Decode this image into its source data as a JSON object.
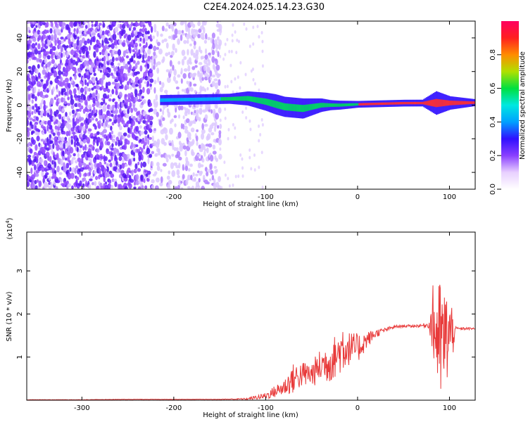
{
  "title": "C2E4.2024.025.14.23.G30",
  "colors": {
    "snr_line": "#e83a3a",
    "spectro_background": "#ffffff",
    "axis": "#000000",
    "colorbar_stops": [
      "#ffffff",
      "#e8d0ff",
      "#8a40ff",
      "#3010ff",
      "#00a0ff",
      "#00e8e0",
      "#00e040",
      "#b0e000",
      "#ff8c00",
      "#ff2020",
      "#ff0060"
    ]
  },
  "chart_data": [
    {
      "type": "heatmap",
      "title": "",
      "xlabel": "Height of straight line (km)",
      "ylabel": "Frequency (Hz)",
      "xlim": [
        -360,
        128
      ],
      "ylim": [
        -50,
        50
      ],
      "xticks": [
        -300,
        -200,
        -100,
        0,
        100
      ],
      "xtick_labels": [
        "-300",
        "-200",
        "-100",
        "0",
        "100"
      ],
      "yticks": [
        -40,
        -20,
        0,
        20,
        40
      ],
      "ytick_labels": [
        "-40",
        "-20",
        "0",
        "20",
        "40"
      ],
      "colorbar": {
        "label": "Normalized spectral amplitude",
        "range": [
          0,
          1
        ],
        "ticks": [
          0.0,
          0.2,
          0.4,
          0.6,
          0.8
        ],
        "tick_labels": [
          "0.0",
          "0.2",
          "0.4",
          "0.6",
          "0.8"
        ],
        "colormap": "rainbow (white-purple-blue-cyan-green-yellow-red-magenta)"
      },
      "features": {
        "noise_region_x": [
          -360,
          -150
        ],
        "sparse_noise_x": [
          -150,
          -105
        ],
        "signal_start_x": -215,
        "signal_center_freq": [
          [
            -215,
            3
          ],
          [
            -120,
            4
          ],
          [
            -100,
            2
          ],
          [
            -80,
            -1
          ],
          [
            -60,
            -2
          ],
          [
            -40,
            0
          ],
          [
            -20,
            0
          ],
          [
            0,
            0.5
          ],
          [
            50,
            1.2
          ],
          [
            100,
            1.3
          ],
          [
            128,
            1.5
          ]
        ],
        "signal_spread_hz": [
          [
            -215,
            3
          ],
          [
            -140,
            3
          ],
          [
            -90,
            6
          ],
          [
            -60,
            6
          ],
          [
            -30,
            3
          ],
          [
            0,
            2
          ],
          [
            70,
            2
          ],
          [
            85,
            7
          ],
          [
            100,
            4
          ],
          [
            128,
            2
          ]
        ]
      }
    },
    {
      "type": "line",
      "title": "",
      "xlabel": "Height of straight line (km)",
      "ylabel": "SNR (10 * v/v)",
      "y_multiplier": "(x10^4)",
      "xlim": [
        -360,
        128
      ],
      "ylim": [
        0,
        3.9
      ],
      "xticks": [
        -300,
        -200,
        -100,
        0,
        100
      ],
      "xtick_labels": [
        "-300",
        "-200",
        "-100",
        "0",
        "100"
      ],
      "yticks": [
        1,
        2,
        3
      ],
      "ytick_labels": [
        "1",
        "2",
        "3"
      ],
      "series": [
        {
          "x": [
            -360,
            -300,
            -250,
            -200,
            -150,
            -120,
            -100,
            -80,
            -70,
            -60,
            -50,
            -40,
            -30,
            -20,
            -15,
            -10,
            0,
            10,
            20,
            30,
            40,
            50,
            60,
            70,
            78,
            82,
            86,
            90,
            95,
            100,
            103,
            106,
            110,
            128
          ],
          "y": [
            0.01,
            0.01,
            0.02,
            0.02,
            0.02,
            0.03,
            0.1,
            0.3,
            0.5,
            0.6,
            0.6,
            0.8,
            0.9,
            1.1,
            1.3,
            1.2,
            1.2,
            1.4,
            1.55,
            1.63,
            1.7,
            1.72,
            1.72,
            1.73,
            1.75,
            1.78,
            1.55,
            1.3,
            1.4,
            1.55,
            1.5,
            1.66,
            1.66,
            1.66
          ],
          "noise_amplitude": [
            0.005,
            0.005,
            0.005,
            0.005,
            0.005,
            0.02,
            0.08,
            0.2,
            0.35,
            0.3,
            0.3,
            0.4,
            0.5,
            0.5,
            0.7,
            0.4,
            0.35,
            0.2,
            0.1,
            0.05,
            0.04,
            0.03,
            0.03,
            0.04,
            0.08,
            0.9,
            1.3,
            1.5,
            1.2,
            1.0,
            0.8,
            0.05,
            0.03,
            0.03
          ]
        }
      ]
    }
  ],
  "multiplier_base": "(x10",
  "multiplier_exp": "4",
  "multiplier_close": ")"
}
